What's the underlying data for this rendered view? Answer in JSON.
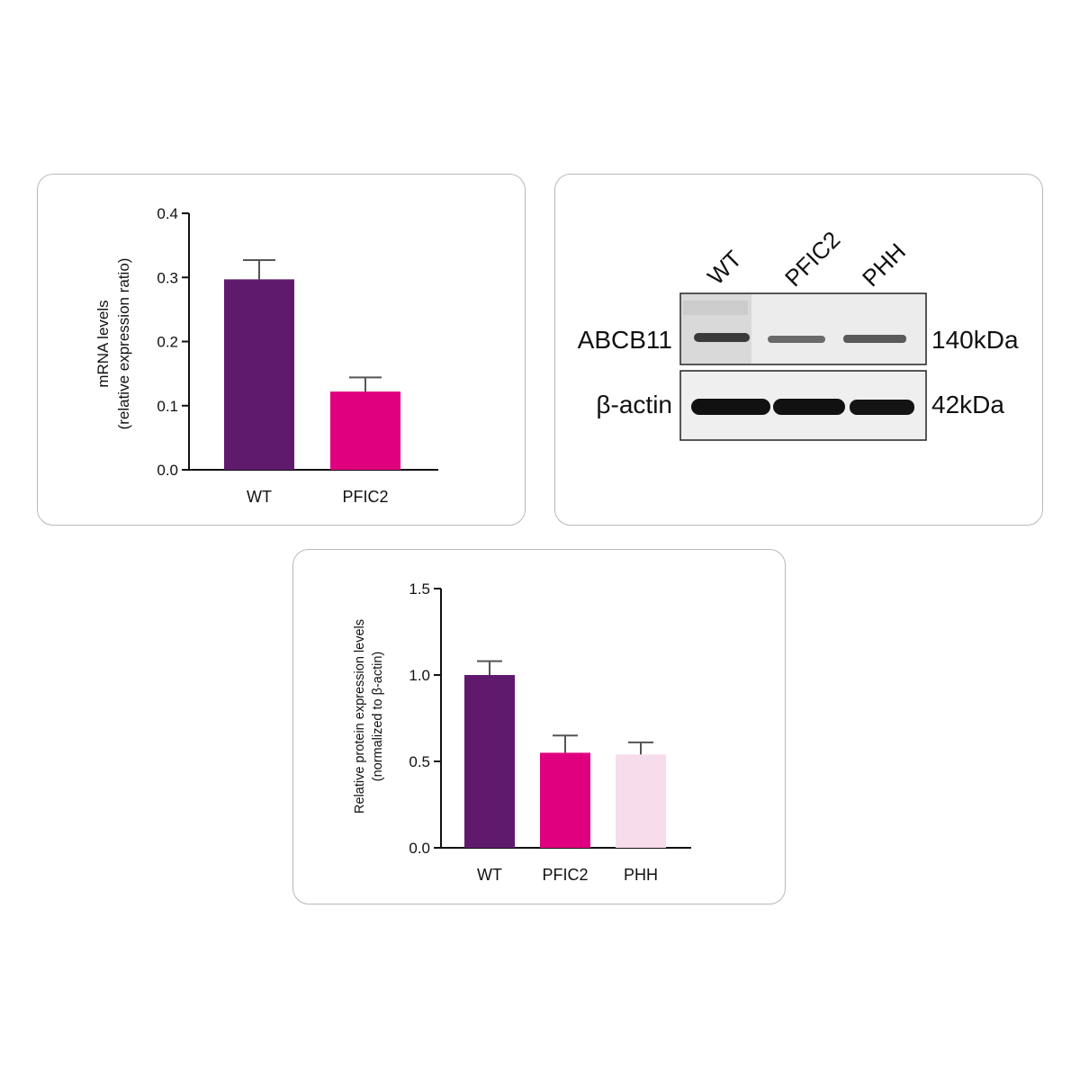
{
  "chart_data": [
    {
      "type": "bar",
      "categories": [
        "WT",
        "PFIC2"
      ],
      "values": [
        0.297,
        0.122
      ],
      "error": [
        0.03,
        0.022
      ],
      "colors": [
        "#5f1a6e",
        "#e0007f"
      ],
      "ylabel_line1": "mRNA levels",
      "ylabel_line2": "(relative expression ratio)",
      "ylim": [
        0,
        0.4
      ],
      "yticks": [
        "0.0",
        "0.1",
        "0.2",
        "0.3",
        "0.4"
      ],
      "grid": false
    },
    {
      "type": "bar",
      "categories": [
        "WT",
        "PFIC2",
        "PHH"
      ],
      "values": [
        1.0,
        0.55,
        0.54
      ],
      "error": [
        0.08,
        0.1,
        0.07
      ],
      "colors": [
        "#5f1a6e",
        "#e0007f",
        "#f7dcec"
      ],
      "ylabel_line1": "Relative protein expression levels",
      "ylabel_line2": "(normalized to β-actin)",
      "ylim": [
        0,
        1.5
      ],
      "yticks": [
        "0.0",
        "0.5",
        "1.0",
        "1.5"
      ],
      "grid": false
    }
  ],
  "western_blot": {
    "lanes": [
      "WT",
      "PFIC2",
      "PHH"
    ],
    "rows": [
      {
        "protein": "ABCB11",
        "size": "140kDa"
      },
      {
        "protein": "β-actin",
        "size": "42kDa"
      }
    ]
  }
}
